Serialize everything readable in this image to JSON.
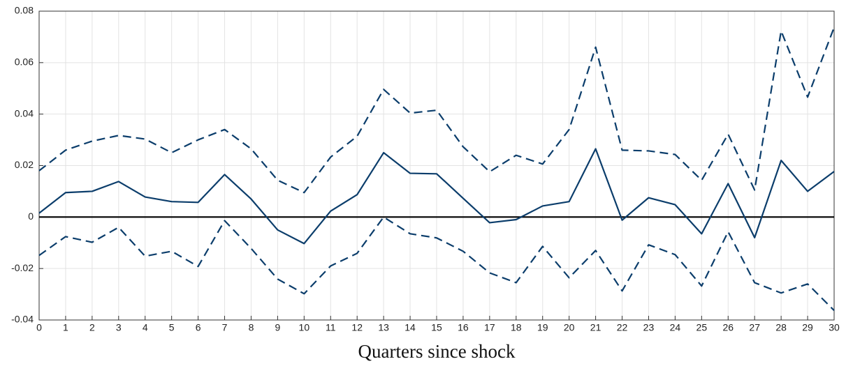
{
  "chart_data": {
    "type": "line",
    "xlabel": "Quarters since shock",
    "x": [
      0,
      1,
      2,
      3,
      4,
      5,
      6,
      7,
      8,
      9,
      10,
      11,
      12,
      13,
      14,
      15,
      16,
      17,
      18,
      19,
      20,
      21,
      22,
      23,
      24,
      25,
      26,
      27,
      28,
      29,
      30
    ],
    "series": [
      {
        "color": "#0b3d6b",
        "dash": false,
        "values": [
          0.0015,
          0.0095,
          0.01,
          0.0138,
          0.0078,
          0.006,
          0.0057,
          0.0165,
          0.007,
          -0.005,
          -0.0103,
          0.0023,
          0.0087,
          0.025,
          0.017,
          0.0168,
          0.0073,
          -0.0022,
          -0.001,
          0.0043,
          0.006,
          0.0265,
          -0.0012,
          0.0075,
          0.0048,
          -0.0065,
          0.013,
          -0.008,
          0.022,
          0.01,
          0.0177
        ]
      },
      {
        "color": "#0b3d6b",
        "dash": true,
        "values": [
          0.018,
          0.026,
          0.0295,
          0.0317,
          0.0303,
          0.025,
          0.03,
          0.034,
          0.0265,
          0.0143,
          0.0095,
          0.0233,
          0.0314,
          0.0496,
          0.0404,
          0.0415,
          0.0273,
          0.0176,
          0.024,
          0.0206,
          0.034,
          0.066,
          0.026,
          0.0257,
          0.0243,
          0.0143,
          0.0322,
          0.0105,
          0.0723,
          0.0466,
          0.0737
        ]
      },
      {
        "color": "#0b3d6b",
        "dash": true,
        "values": [
          -0.0149,
          -0.0076,
          -0.0098,
          -0.004,
          -0.0152,
          -0.0133,
          -0.0192,
          -0.0014,
          -0.0122,
          -0.0241,
          -0.0298,
          -0.019,
          -0.0141,
          0,
          -0.0065,
          -0.0081,
          -0.0133,
          -0.0217,
          -0.0255,
          -0.0114,
          -0.0236,
          -0.013,
          -0.0287,
          -0.0108,
          -0.0146,
          -0.0268,
          -0.0057,
          -0.0255,
          -0.0295,
          -0.026,
          -0.0363
        ]
      }
    ],
    "xlim": [
      0,
      30
    ],
    "xticks": [
      0,
      1,
      2,
      3,
      4,
      5,
      6,
      7,
      8,
      9,
      10,
      11,
      12,
      13,
      14,
      15,
      16,
      17,
      18,
      19,
      20,
      21,
      22,
      23,
      24,
      25,
      26,
      27,
      28,
      29,
      30
    ],
    "ylim": [
      -0.04,
      0.08
    ],
    "yticks": [
      -0.04,
      -0.02,
      0,
      0.02,
      0.04,
      0.06,
      0.08
    ],
    "grid": true,
    "zero_line": true
  }
}
